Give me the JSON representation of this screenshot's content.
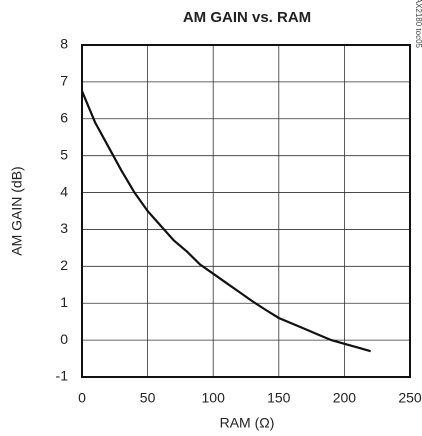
{
  "chart_data": {
    "type": "line",
    "title": "AM GAIN vs. RAM",
    "x_label": "RAM (Ω)",
    "y_label": "AM GAIN (dB)",
    "annotation": "MAX2180 toc05",
    "x": [
      0,
      10,
      20,
      30,
      40,
      50,
      60,
      70,
      80,
      90,
      100,
      110,
      120,
      130,
      140,
      150,
      160,
      170,
      180,
      190,
      200,
      210,
      220
    ],
    "values": [
      6.75,
      5.9,
      5.25,
      4.6,
      4.0,
      3.5,
      3.1,
      2.7,
      2.4,
      2.05,
      1.8,
      1.55,
      1.3,
      1.05,
      0.82,
      0.6,
      0.45,
      0.3,
      0.15,
      0,
      -0.1,
      -0.2,
      -0.3
    ],
    "color": "#111111",
    "xlim": [
      0,
      250
    ],
    "xticks": [
      0,
      50,
      100,
      150,
      200,
      250
    ],
    "ylim": [
      -1,
      8
    ],
    "yticks": [
      -1,
      0,
      1,
      2,
      3,
      4,
      5,
      6,
      7,
      8
    ],
    "grid": true
  }
}
